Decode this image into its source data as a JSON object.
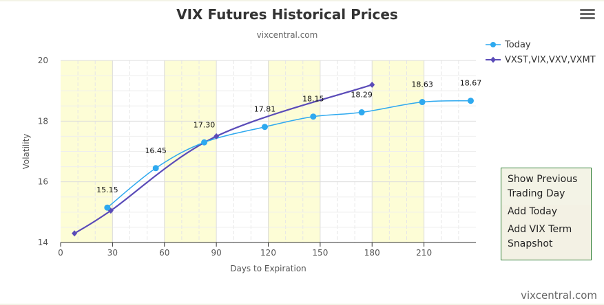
{
  "header": {
    "title": "VIX Futures Historical Prices",
    "subtitle": "vixcentral.com"
  },
  "menu": {
    "icon": "hamburger-menu-icon"
  },
  "legend": {
    "items": [
      {
        "label": "Today",
        "color": "#2ea9ef",
        "marker": "circle"
      },
      {
        "label": "VXST,VIX,VXV,VXMT",
        "color": "#5a4bb8",
        "marker": "diamond"
      }
    ]
  },
  "side_panel": {
    "options": [
      "Show Previous Trading Day",
      "Add Today",
      "Add VIX Term Snapshot"
    ]
  },
  "credit": "vixcentral.com",
  "colors": {
    "today": "#2ea9ef",
    "term": "#5a4bb8",
    "band": "#fdfdd6",
    "panel_border": "#2e7d32"
  },
  "chart_data": {
    "type": "line",
    "xlabel": "Days to Expiration",
    "ylabel": "Volatility",
    "xlim": [
      0,
      240
    ],
    "ylim": [
      14,
      20
    ],
    "xticks": [
      0,
      30,
      60,
      90,
      120,
      150,
      180,
      210
    ],
    "yticks": [
      14,
      16,
      18,
      20
    ],
    "bands": [
      [
        0,
        30
      ],
      [
        60,
        90
      ],
      [
        120,
        150
      ],
      [
        180,
        210
      ]
    ],
    "grid": true,
    "legend_position": "top-right",
    "series": [
      {
        "name": "Today",
        "marker": "circle",
        "points": [
          {
            "x": 27,
            "y": 15.15,
            "label": "15.15"
          },
          {
            "x": 55,
            "y": 16.45,
            "label": "16.45"
          },
          {
            "x": 83,
            "y": 17.3,
            "label": "17.30"
          },
          {
            "x": 118,
            "y": 17.81,
            "label": "17.81"
          },
          {
            "x": 146,
            "y": 18.15,
            "label": "18.15"
          },
          {
            "x": 174,
            "y": 18.29,
            "label": "18.29"
          },
          {
            "x": 209,
            "y": 18.63,
            "label": "18.63"
          },
          {
            "x": 237,
            "y": 18.67,
            "label": "18.67"
          }
        ]
      },
      {
        "name": "VXST,VIX,VXV,VXMT",
        "marker": "diamond",
        "points": [
          {
            "x": 8,
            "y": 14.3
          },
          {
            "x": 29,
            "y": 15.05
          },
          {
            "x": 90,
            "y": 17.5
          },
          {
            "x": 180,
            "y": 19.2
          }
        ]
      }
    ]
  }
}
